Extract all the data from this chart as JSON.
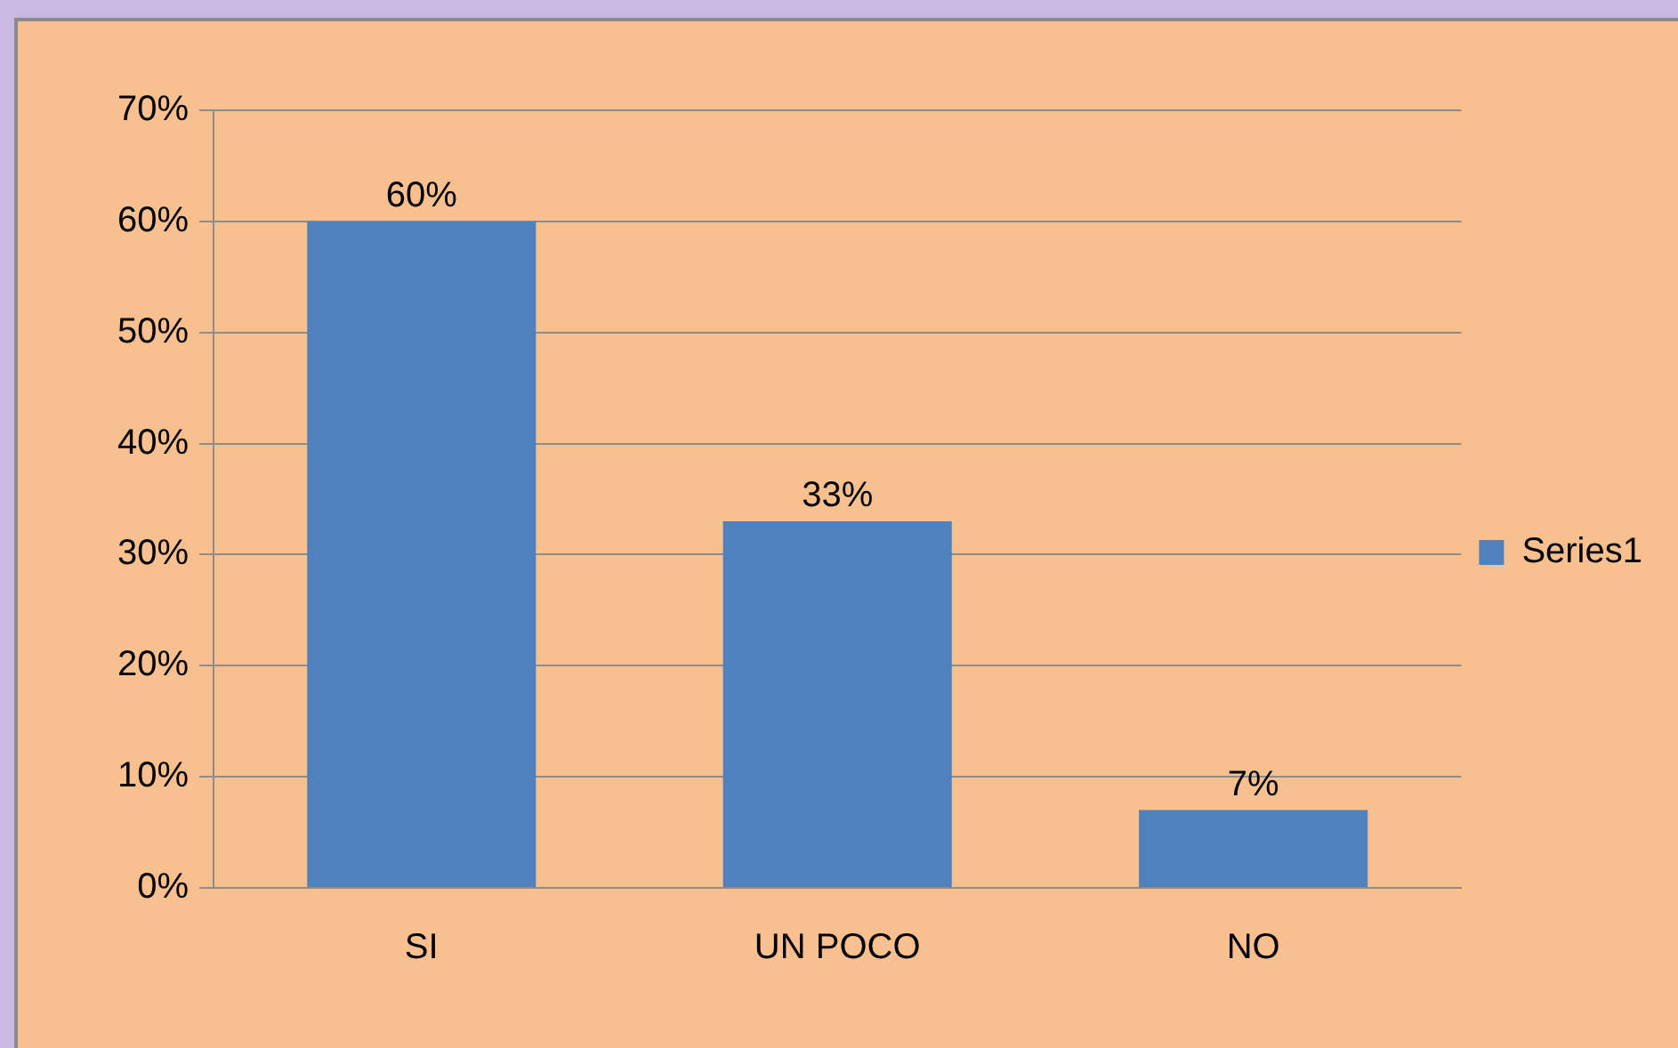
{
  "chart_data": {
    "type": "bar",
    "categories": [
      "SI",
      "UN POCO",
      "NO"
    ],
    "series": [
      {
        "name": "Series1",
        "color": "#4f81bd",
        "values": [
          60,
          33,
          7
        ],
        "value_labels": [
          "60%",
          "33%",
          "7%"
        ]
      }
    ],
    "ylim": [
      0,
      70
    ],
    "yticks": [
      {
        "value": 0,
        "label": "0%"
      },
      {
        "value": 10,
        "label": "10%"
      },
      {
        "value": 20,
        "label": "20%"
      },
      {
        "value": 30,
        "label": "30%"
      },
      {
        "value": 40,
        "label": "40%"
      },
      {
        "value": 50,
        "label": "50%"
      },
      {
        "value": 60,
        "label": "60%"
      },
      {
        "value": 70,
        "label": "70%"
      }
    ],
    "grid": "y",
    "legend": "right"
  }
}
